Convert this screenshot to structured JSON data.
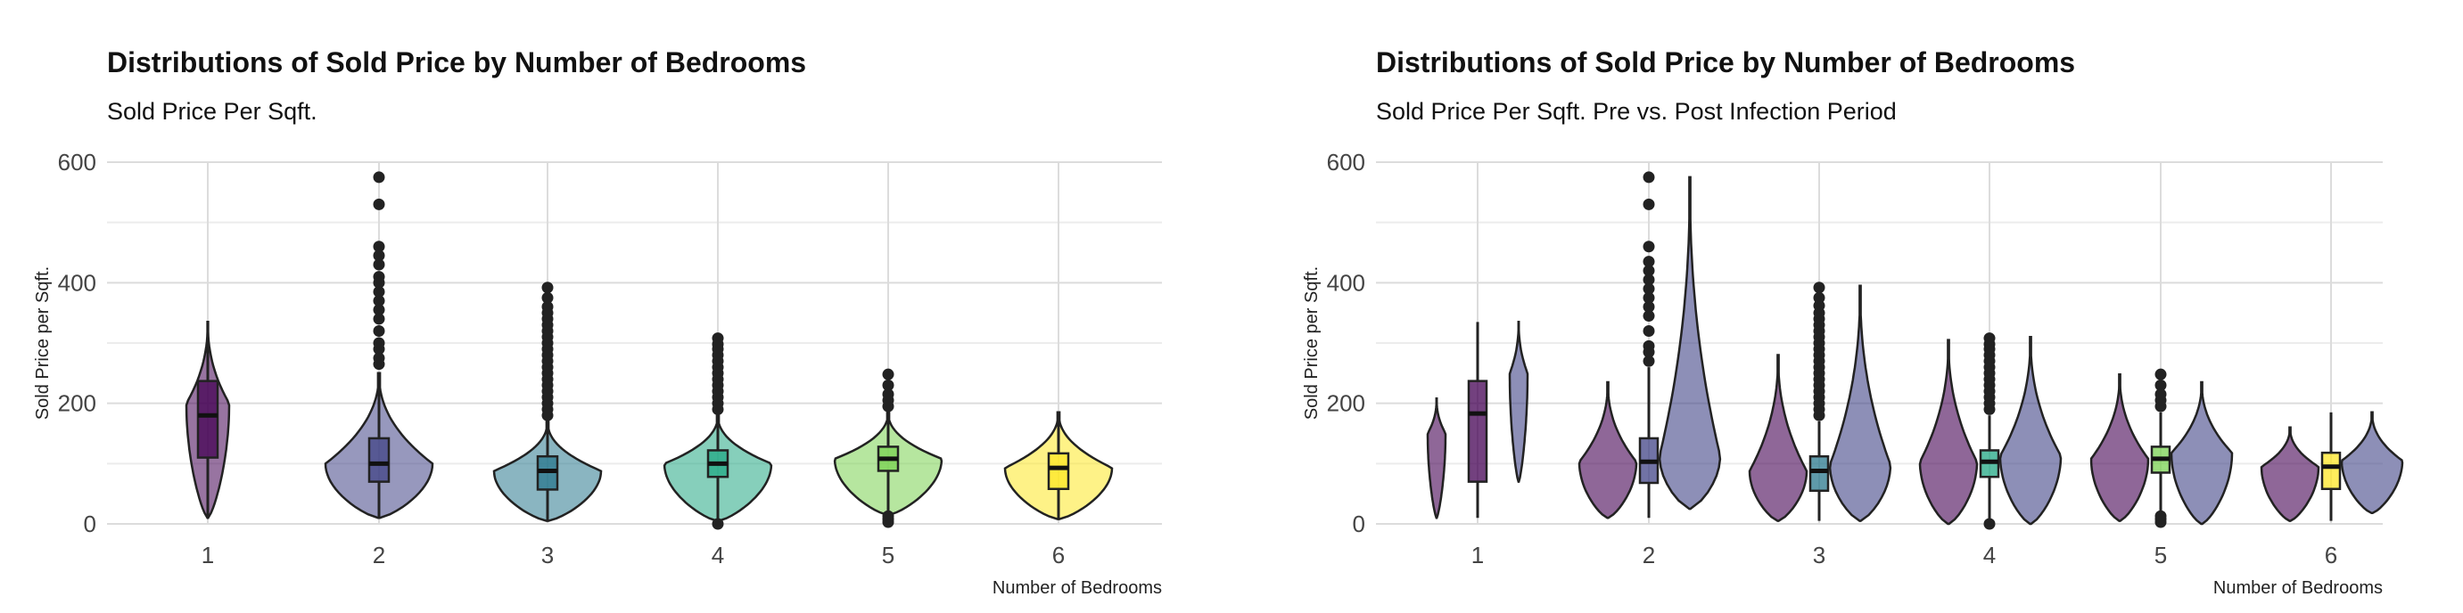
{
  "chart_data": [
    {
      "type": "violin",
      "title": "Distributions of Sold Price by Number of Bedrooms",
      "subtitle": "Sold Price Per Sqft.",
      "xlabel": "Number of Bedrooms",
      "ylabel": "Sold Price per Sqft.",
      "ylim": [
        0,
        600
      ],
      "y_ticks": [
        0,
        200,
        400,
        600
      ],
      "categories": [
        "1",
        "2",
        "3",
        "4",
        "5",
        "6"
      ],
      "grid": true,
      "legend": "none",
      "groups": [
        {
          "bedrooms": "1",
          "color": "#440154",
          "min": 10,
          "q1": 110,
          "median": 180,
          "q3": 237,
          "max": 335,
          "outliers": []
        },
        {
          "bedrooms": "2",
          "color": "#414487",
          "min": 10,
          "q1": 70,
          "median": 100,
          "q3": 142,
          "max": 250,
          "outliers": [
            265,
            275,
            290,
            300,
            320,
            340,
            355,
            370,
            385,
            400,
            410,
            430,
            445,
            460,
            530,
            575
          ]
        },
        {
          "bedrooms": "3",
          "color": "#2A788E",
          "min": 5,
          "q1": 57,
          "median": 88,
          "q3": 112,
          "max": 170,
          "outliers": [
            180,
            190,
            200,
            210,
            220,
            230,
            240,
            250,
            260,
            270,
            280,
            290,
            300,
            310,
            320,
            330,
            340,
            350,
            360,
            375,
            392
          ]
        },
        {
          "bedrooms": "4",
          "color": "#22A884",
          "min": 5,
          "q1": 78,
          "median": 100,
          "q3": 122,
          "max": 180,
          "outliers": [
            0,
            190,
            200,
            210,
            220,
            230,
            240,
            250,
            260,
            270,
            280,
            290,
            298,
            308
          ]
        },
        {
          "bedrooms": "5",
          "color": "#7AD151",
          "min": 15,
          "q1": 88,
          "median": 108,
          "q3": 128,
          "max": 185,
          "outliers": [
            3,
            8,
            13,
            195,
            205,
            215,
            230,
            248
          ]
        },
        {
          "bedrooms": "6",
          "color": "#FDE725",
          "min": 8,
          "q1": 58,
          "median": 93,
          "q3": 117,
          "max": 185,
          "outliers": []
        }
      ]
    },
    {
      "type": "violin",
      "title": "Distributions of Sold Price by Number of Bedrooms",
      "subtitle": "Sold Price Per Sqft. Pre vs. Post Infection Period",
      "xlabel": "Number of Bedrooms",
      "ylabel": "Sold Price per Sqft.",
      "ylim": [
        0,
        600
      ],
      "y_ticks": [
        0,
        200,
        400,
        600
      ],
      "categories": [
        "1",
        "2",
        "3",
        "4",
        "5",
        "6"
      ],
      "grid": true,
      "legend": "none",
      "period_colors": {
        "pre": "#440154",
        "post": "#414487"
      },
      "groups": [
        {
          "bedrooms": "1",
          "pre": {
            "min": 10,
            "max": 208
          },
          "post": {
            "min": 70,
            "max": 335
          },
          "box": {
            "color": "#440154",
            "min": 10,
            "q1": 70,
            "median": 183,
            "q3": 237,
            "max": 335,
            "outliers": []
          }
        },
        {
          "bedrooms": "2",
          "pre": {
            "min": 10,
            "max": 235
          },
          "post": {
            "min": 25,
            "max": 575
          },
          "box": {
            "color": "#414487",
            "min": 10,
            "q1": 68,
            "median": 103,
            "q3": 142,
            "max": 260,
            "outliers": [
              270,
              285,
              295,
              320,
              345,
              360,
              375,
              390,
              405,
              420,
              435,
              460,
              530,
              575
            ]
          }
        },
        {
          "bedrooms": "3",
          "pre": {
            "min": 5,
            "max": 280
          },
          "post": {
            "min": 5,
            "max": 395
          },
          "box": {
            "color": "#2A788E",
            "min": 5,
            "q1": 55,
            "median": 88,
            "q3": 112,
            "max": 170,
            "outliers": [
              180,
              190,
              200,
              210,
              220,
              230,
              240,
              250,
              260,
              270,
              280,
              290,
              300,
              310,
              320,
              330,
              340,
              350,
              362,
              375,
              392
            ]
          }
        },
        {
          "bedrooms": "4",
          "pre": {
            "min": 0,
            "max": 305
          },
          "post": {
            "min": 0,
            "max": 310
          },
          "box": {
            "color": "#22A884",
            "min": 5,
            "q1": 78,
            "median": 103,
            "q3": 122,
            "max": 180,
            "outliers": [
              0,
              190,
              200,
              210,
              220,
              230,
              240,
              250,
              260,
              270,
              280,
              290,
              298,
              308
            ]
          }
        },
        {
          "bedrooms": "5",
          "pre": {
            "min": 5,
            "max": 248
          },
          "post": {
            "min": 0,
            "max": 235
          },
          "box": {
            "color": "#7AD151",
            "min": 15,
            "q1": 85,
            "median": 108,
            "q3": 128,
            "max": 185,
            "outliers": [
              3,
              8,
              13,
              195,
              205,
              215,
              230,
              248
            ]
          }
        },
        {
          "bedrooms": "6",
          "pre": {
            "min": 5,
            "max": 160
          },
          "post": {
            "min": 18,
            "max": 185
          },
          "box": {
            "color": "#FDE725",
            "min": 5,
            "q1": 58,
            "median": 95,
            "q3": 118,
            "max": 185,
            "outliers": []
          }
        }
      ]
    }
  ]
}
